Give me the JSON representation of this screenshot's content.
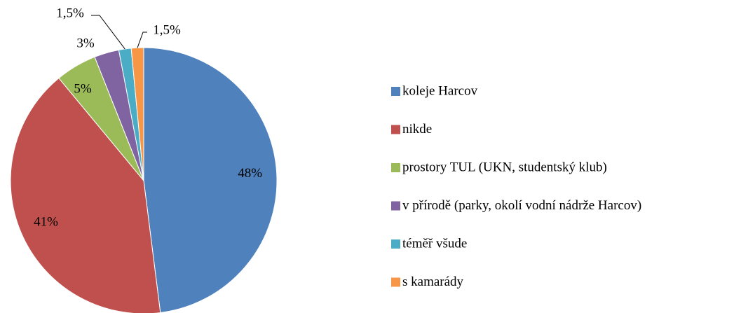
{
  "chart_data": {
    "type": "pie",
    "categories": [
      "koleje Harcov",
      "nikde",
      "prostory TUL (UKN,  studentský klub)",
      "v přírodě (parky, okolí vodní nádrže Harcov)",
      "téměř všude",
      "s kamarády"
    ],
    "values": [
      48,
      41,
      5,
      3,
      1.5,
      1.5
    ],
    "value_labels": [
      "48%",
      "41%",
      "5%",
      "3%",
      "1,5%",
      "1,5%"
    ],
    "colors": [
      "#4f81bd",
      "#c0504d",
      "#9bbb59",
      "#8064a2",
      "#4bacc6",
      "#f79646"
    ],
    "legend": "right"
  }
}
